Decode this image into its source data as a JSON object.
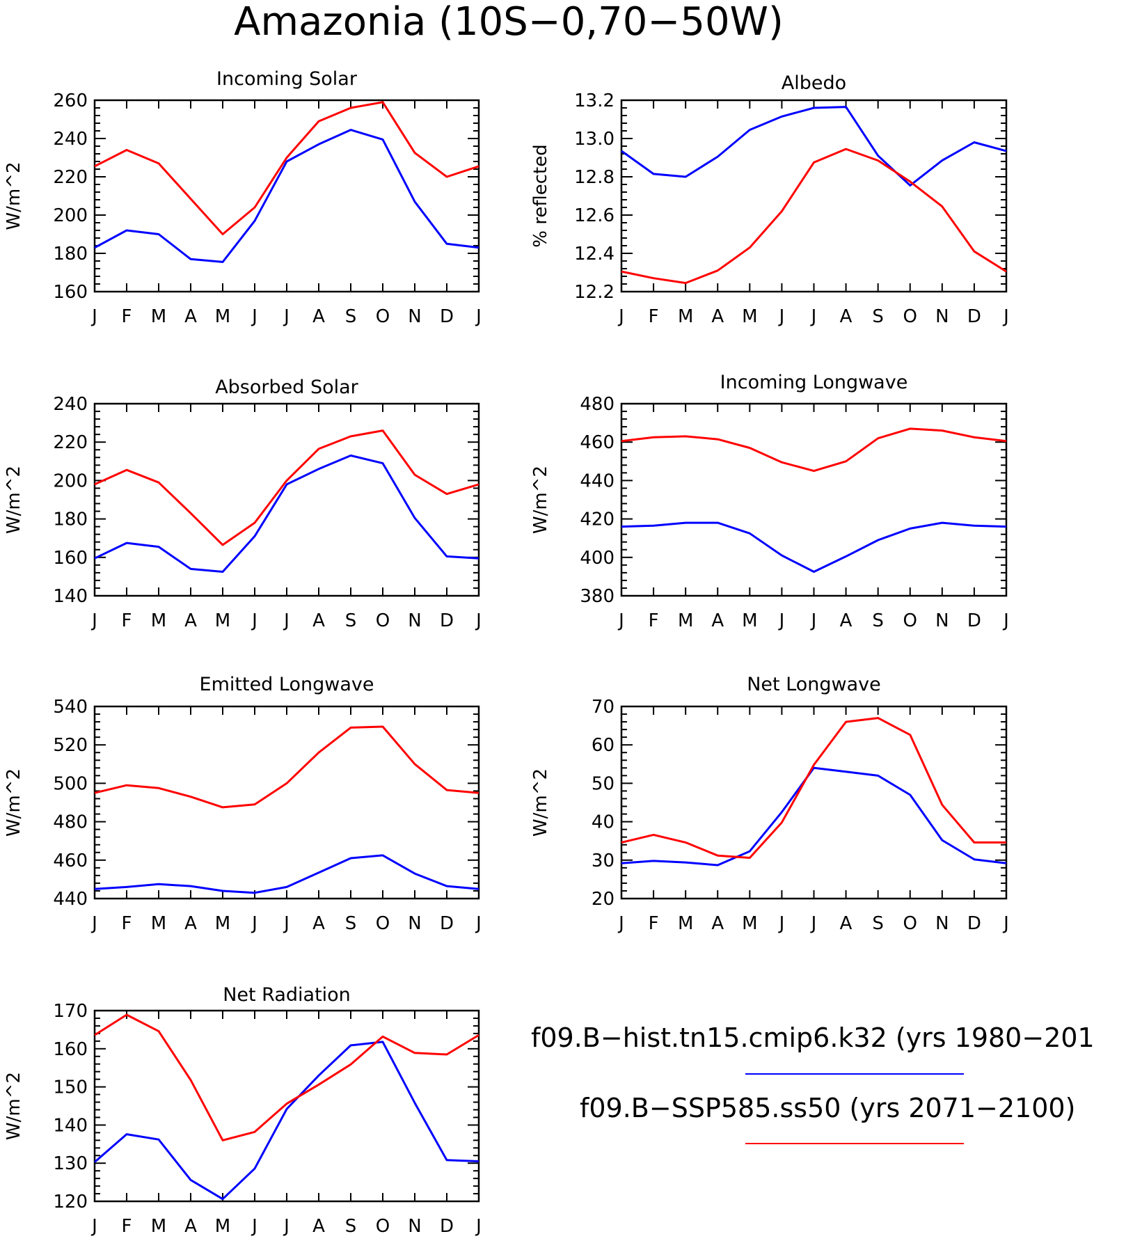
{
  "figure": {
    "title": "Amazonia (10S−0,70−50W)",
    "colors": {
      "historical": "#0000ff",
      "future": "#ff0000"
    }
  },
  "legend": [
    {
      "label": "f09.B−hist.tn15.cmip6.k32 (yrs 1980−201",
      "color": "#0000ff"
    },
    {
      "label": "f09.B−SSP585.ss50 (yrs 2071−2100)",
      "color": "#ff0000"
    }
  ],
  "chart_data": [
    {
      "type": "line",
      "title": "Incoming Solar",
      "ylabel": "W/m^2",
      "categories": [
        "J",
        "F",
        "M",
        "A",
        "M",
        "J",
        "J",
        "A",
        "S",
        "O",
        "N",
        "D",
        "J"
      ],
      "ylim": [
        160,
        260
      ],
      "yticks": [
        160,
        180,
        200,
        220,
        240,
        260
      ],
      "yminor": 5,
      "series": [
        {
          "color": "#0000ff",
          "values": [
            183,
            192,
            190,
            177,
            175.5,
            197,
            228,
            237,
            244.5,
            239.5,
            207,
            185,
            183
          ]
        },
        {
          "color": "#ff0000",
          "values": [
            225.5,
            234,
            227,
            208.5,
            190,
            204,
            230,
            249,
            256,
            259,
            232.5,
            220,
            225.5
          ]
        }
      ]
    },
    {
      "type": "line",
      "title": "Albedo",
      "ylabel": "% reflected",
      "categories": [
        "J",
        "F",
        "M",
        "A",
        "M",
        "J",
        "J",
        "A",
        "S",
        "O",
        "N",
        "D",
        "J"
      ],
      "ylim": [
        12.2,
        13.2
      ],
      "yticks": [
        12.2,
        12.4,
        12.6,
        12.8,
        13.0,
        13.2
      ],
      "ydecimals": 1,
      "yminor": 5,
      "series": [
        {
          "color": "#0000ff",
          "values": [
            12.935,
            12.815,
            12.8,
            12.905,
            13.045,
            13.115,
            13.16,
            13.165,
            12.91,
            12.755,
            12.885,
            12.98,
            12.935
          ]
        },
        {
          "color": "#ff0000",
          "values": [
            12.305,
            12.27,
            12.245,
            12.31,
            12.43,
            12.62,
            12.875,
            12.945,
            12.885,
            12.775,
            12.645,
            12.41,
            12.305
          ]
        }
      ]
    },
    {
      "type": "line",
      "title": "Absorbed Solar",
      "ylabel": "W/m^2",
      "categories": [
        "J",
        "F",
        "M",
        "A",
        "M",
        "J",
        "J",
        "A",
        "S",
        "O",
        "N",
        "D",
        "J"
      ],
      "ylim": [
        140,
        240
      ],
      "yticks": [
        140,
        160,
        180,
        200,
        220,
        240
      ],
      "yminor": 5,
      "series": [
        {
          "color": "#0000ff",
          "values": [
            159.5,
            167.5,
            165.5,
            154,
            152.5,
            171,
            198,
            206,
            213,
            209,
            180.5,
            160.5,
            159.5
          ]
        },
        {
          "color": "#ff0000",
          "values": [
            198,
            205.5,
            199,
            183,
            166.5,
            178,
            200,
            216.5,
            223,
            226,
            203,
            193,
            198
          ]
        }
      ]
    },
    {
      "type": "line",
      "title": "Incoming Longwave",
      "ylabel": "W/m^2",
      "categories": [
        "J",
        "F",
        "M",
        "A",
        "M",
        "J",
        "J",
        "A",
        "S",
        "O",
        "N",
        "D",
        "J"
      ],
      "ylim": [
        380,
        480
      ],
      "yticks": [
        380,
        400,
        420,
        440,
        460,
        480
      ],
      "yminor": 5,
      "series": [
        {
          "color": "#0000ff",
          "values": [
            416,
            416.5,
            418,
            418,
            412.5,
            401,
            392.5,
            400.5,
            409,
            415,
            418,
            416.5,
            416
          ]
        },
        {
          "color": "#ff0000",
          "values": [
            460.5,
            462.5,
            463,
            461.5,
            457,
            449.5,
            445,
            450,
            462,
            467,
            466,
            462.5,
            460.5
          ]
        }
      ]
    },
    {
      "type": "line",
      "title": "Emitted Longwave",
      "ylabel": "W/m^2",
      "categories": [
        "J",
        "F",
        "M",
        "A",
        "M",
        "J",
        "J",
        "A",
        "S",
        "O",
        "N",
        "D",
        "J"
      ],
      "ylim": [
        440,
        540
      ],
      "yticks": [
        440,
        460,
        480,
        500,
        520,
        540
      ],
      "yminor": 5,
      "series": [
        {
          "color": "#0000ff",
          "values": [
            445,
            446,
            447.5,
            446.5,
            444,
            443,
            446,
            453.5,
            461,
            462.5,
            453,
            446.5,
            445
          ]
        },
        {
          "color": "#ff0000",
          "values": [
            495,
            499,
            497.5,
            493,
            487.5,
            489,
            500,
            516,
            529,
            529.5,
            510,
            496.5,
            495
          ]
        }
      ]
    },
    {
      "type": "line",
      "title": "Net Longwave",
      "ylabel": "W/m^2",
      "categories": [
        "J",
        "F",
        "M",
        "A",
        "M",
        "J",
        "J",
        "A",
        "S",
        "O",
        "N",
        "D",
        "J"
      ],
      "ylim": [
        20,
        70
      ],
      "yticks": [
        20,
        30,
        40,
        50,
        60,
        70
      ],
      "yminor": 5,
      "series": [
        {
          "color": "#0000ff",
          "values": [
            29.2,
            29.8,
            29.4,
            28.7,
            32.3,
            42.5,
            54,
            53,
            52,
            47,
            35.2,
            30.2,
            29.2
          ]
        },
        {
          "color": "#ff0000",
          "values": [
            34.6,
            36.6,
            34.6,
            31.2,
            30.6,
            39.8,
            54.8,
            66,
            67,
            62.6,
            44.4,
            34.6,
            34.6
          ]
        }
      ]
    },
    {
      "type": "line",
      "title": "Net Radiation",
      "ylabel": "W/m^2",
      "categories": [
        "J",
        "F",
        "M",
        "A",
        "M",
        "J",
        "J",
        "A",
        "S",
        "O",
        "N",
        "D",
        "J"
      ],
      "ylim": [
        120,
        170
      ],
      "yticks": [
        120,
        130,
        140,
        150,
        160,
        170
      ],
      "yminor": 5,
      "series": [
        {
          "color": "#0000ff",
          "values": [
            130.3,
            137.6,
            136.2,
            125.6,
            120.6,
            128.6,
            144.2,
            153,
            160.9,
            161.8,
            145.8,
            130.8,
            130.5
          ]
        },
        {
          "color": "#ff0000",
          "values": [
            163.6,
            168.9,
            164.6,
            151.8,
            136,
            138.2,
            145.6,
            150.6,
            155.9,
            163.2,
            158.9,
            158.5,
            163.6
          ]
        }
      ]
    }
  ]
}
